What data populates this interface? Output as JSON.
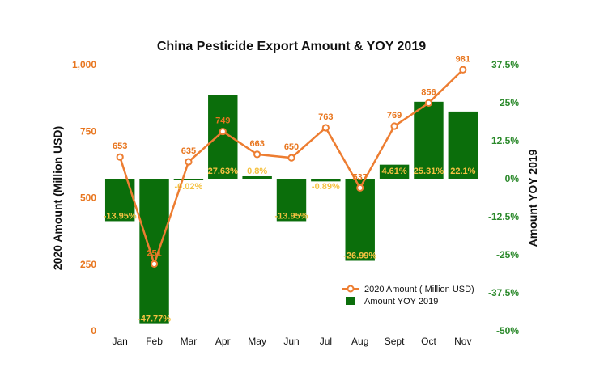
{
  "chart_data": {
    "type": "bar",
    "title": "China Pesticide Export Amount & YOY 2019",
    "categories": [
      "Jan",
      "Feb",
      "Mar",
      "Apr",
      "May",
      "Jun",
      "Jul",
      "Aug",
      "Sept",
      "Oct",
      "Nov"
    ],
    "y_left": {
      "label": "2020 Amount (Million USD)",
      "ticks": [
        "0",
        "250",
        "500",
        "750",
        "1,000"
      ],
      "range": [
        0,
        1000
      ]
    },
    "y_right": {
      "label": "Amount YOY 2019",
      "ticks": [
        "-50%",
        "-37.5%",
        "-25%",
        "-12.5%",
        "0%",
        "12.5%",
        "25%",
        "37.5%"
      ],
      "range": [
        -50,
        37.5
      ]
    },
    "series": [
      {
        "name": "2020 Amount ( Million USD)",
        "type": "line",
        "axis": "left",
        "color": "#ED7D31",
        "values": [
          653,
          251,
          635,
          749,
          663,
          650,
          763,
          537,
          769,
          856,
          981
        ],
        "labels": [
          "653",
          "251",
          "635",
          "749",
          "663",
          "650",
          "763",
          "537",
          "769",
          "856",
          "981"
        ]
      },
      {
        "name": "Amount YOY 2019",
        "type": "bar",
        "axis": "right",
        "color": "#0B6E0B",
        "values": [
          -13.95,
          -47.77,
          -0.02,
          27.63,
          0.8,
          -13.95,
          -0.89,
          -26.99,
          4.61,
          25.31,
          22.1
        ],
        "labels": [
          "-13.95%",
          "-47.77%",
          "-0.02%",
          "27.63%",
          "0.8%",
          "-13.95%",
          "-0.89%",
          "-26.99%",
          "4.61%",
          "25.31%",
          "22.1%"
        ]
      }
    ],
    "legend_position": "bottom-right",
    "grid": false,
    "colors": {
      "left_axis": "#E8761F",
      "right_axis": "#2C8A2C",
      "bar_label": "#F5C242",
      "line_label": "#E8761F"
    }
  }
}
